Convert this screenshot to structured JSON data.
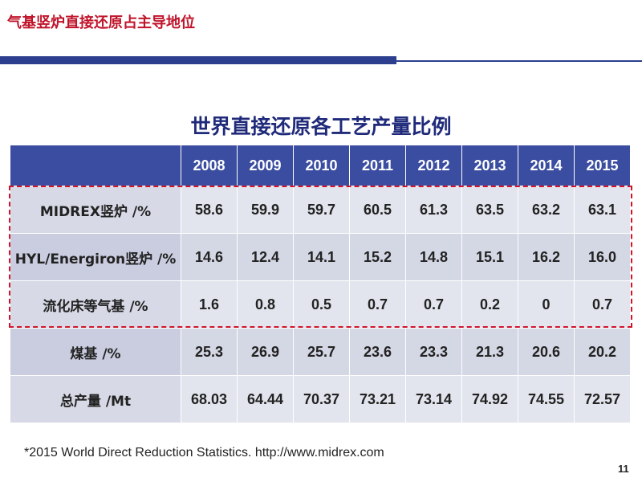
{
  "slide": {
    "title": "气基竖炉直接还原占主导地位",
    "table_title": "世界直接还原各工艺产量比例",
    "footnote": "*2015 World Direct Reduction Statistics. http://www.midrex.com",
    "page_number": "11"
  },
  "table": {
    "corner": "",
    "years": [
      "2008",
      "2009",
      "2010",
      "2011",
      "2012",
      "2013",
      "2014",
      "2015"
    ],
    "rows": [
      {
        "label": "MIDREX竖炉 /%",
        "values": [
          "58.6",
          "59.9",
          "59.7",
          "60.5",
          "61.3",
          "63.5",
          "63.2",
          "63.1"
        ]
      },
      {
        "label": "HYL/Energiron竖炉 /%",
        "values": [
          "14.6",
          "12.4",
          "14.1",
          "15.2",
          "14.8",
          "15.1",
          "16.2",
          "16.0"
        ]
      },
      {
        "label": "流化床等气基 /%",
        "values": [
          "1.6",
          "0.8",
          "0.5",
          "0.7",
          "0.7",
          "0.2",
          "0",
          "0.7"
        ]
      },
      {
        "label": "煤基 /%",
        "values": [
          "25.3",
          "26.9",
          "25.7",
          "23.6",
          "23.3",
          "21.3",
          "20.6",
          "20.2"
        ]
      },
      {
        "label": "总产量 /Mt",
        "values": [
          "68.03",
          "64.44",
          "70.37",
          "73.21",
          "73.14",
          "74.92",
          "74.55",
          "72.57"
        ]
      }
    ]
  },
  "colors": {
    "title_red": "#c0142a",
    "header_blue": "#3a4da0",
    "highlight_dash": "#d0142a"
  }
}
